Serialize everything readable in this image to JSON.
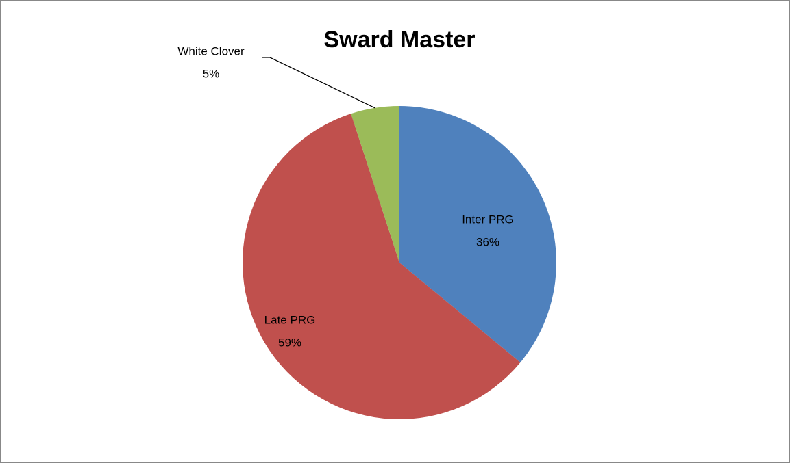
{
  "chart_data": {
    "type": "pie",
    "title": "Sward Master",
    "categories": [
      "Inter PRG",
      "Late PRG",
      "White Clover"
    ],
    "values": [
      36,
      59,
      5
    ],
    "value_labels": [
      "36%",
      "59%",
      "5%"
    ],
    "colors": [
      "#4f81bd",
      "#c0504d",
      "#9bbb59"
    ]
  }
}
